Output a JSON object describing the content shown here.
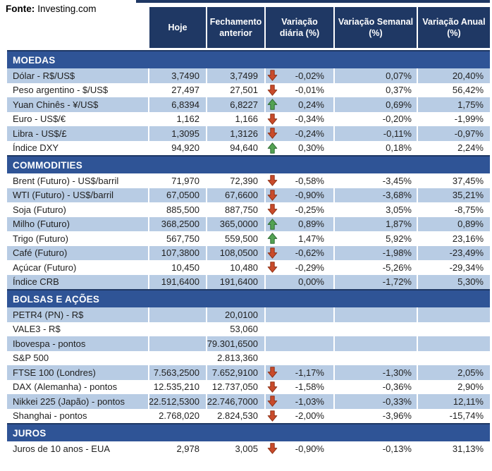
{
  "table": {
    "columns": [
      "Hoje",
      "Fechamento anterior",
      "Variação diária (%)",
      "Variação Semanal (%)",
      "Variação Anual (%)"
    ]
  },
  "colors": {
    "header_bg": "#1F3864",
    "section_bg": "#2F5496",
    "shaded_row_bg": "#B8CCE4",
    "arrow_down": "#C94B2B",
    "arrow_down_stroke": "#8F3014",
    "arrow_up": "#53A253",
    "arrow_up_stroke": "#2F6B33"
  },
  "sections": [
    {
      "title": "MOEDAS",
      "rows": [
        {
          "label": "Dólar - R$/US$",
          "hoje": "3,7490",
          "fech": "3,7499",
          "icon": "down",
          "vdia": "-0,02%",
          "vsem": "0,07%",
          "vanual": "20,40%",
          "shaded": true
        },
        {
          "label": "Peso argentino - $/US$",
          "hoje": "27,497",
          "fech": "27,501",
          "icon": "down",
          "vdia": "-0,01%",
          "vsem": "0,37%",
          "vanual": "56,42%",
          "shaded": false
        },
        {
          "label": "Yuan Chinês - ¥/US$",
          "hoje": "6,8394",
          "fech": "6,8227",
          "icon": "up",
          "vdia": "0,24%",
          "vsem": "0,69%",
          "vanual": "1,75%",
          "shaded": true
        },
        {
          "label": "Euro - US$/€",
          "hoje": "1,162",
          "fech": "1,166",
          "icon": "down",
          "vdia": "-0,34%",
          "vsem": "-0,20%",
          "vanual": "-1,99%",
          "shaded": false
        },
        {
          "label": "Libra - US$/£",
          "hoje": "1,3095",
          "fech": "1,3126",
          "icon": "down",
          "vdia": "-0,24%",
          "vsem": "-0,11%",
          "vanual": "-0,97%",
          "shaded": true
        },
        {
          "label": "Índice DXY",
          "hoje": "94,920",
          "fech": "94,640",
          "icon": "up",
          "vdia": "0,30%",
          "vsem": "0,18%",
          "vanual": "2,24%",
          "shaded": false
        }
      ]
    },
    {
      "title": "COMMODITIES",
      "rows": [
        {
          "label": "Brent (Futuro) - US$/barril",
          "hoje": "71,970",
          "fech": "72,390",
          "icon": "down",
          "vdia": "-0,58%",
          "vsem": "-3,45%",
          "vanual": "37,45%",
          "shaded": false
        },
        {
          "label": "WTI (Futuro) - US$/barril",
          "hoje": "67,0500",
          "fech": "67,6600",
          "icon": "down",
          "vdia": "-0,90%",
          "vsem": "-3,68%",
          "vanual": "35,21%",
          "shaded": true
        },
        {
          "label": "Soja (Futuro)",
          "hoje": "885,500",
          "fech": "887,750",
          "icon": "down",
          "vdia": "-0,25%",
          "vsem": "3,05%",
          "vanual": "-8,75%",
          "shaded": false
        },
        {
          "label": "Milho (Futuro)",
          "hoje": "368,2500",
          "fech": "365,0000",
          "icon": "up",
          "vdia": "0,89%",
          "vsem": "1,87%",
          "vanual": "0,89%",
          "shaded": true
        },
        {
          "label": "Trigo (Futuro)",
          "hoje": "567,750",
          "fech": "559,500",
          "icon": "up",
          "vdia": "1,47%",
          "vsem": "5,92%",
          "vanual": "23,16%",
          "shaded": false
        },
        {
          "label": "Café (Futuro)",
          "hoje": "107,3800",
          "fech": "108,0500",
          "icon": "down",
          "vdia": "-0,62%",
          "vsem": "-1,98%",
          "vanual": "-23,49%",
          "shaded": true
        },
        {
          "label": "Açúcar (Futuro)",
          "hoje": "10,450",
          "fech": "10,480",
          "icon": "down",
          "vdia": "-0,29%",
          "vsem": "-5,26%",
          "vanual": "-29,34%",
          "shaded": false
        },
        {
          "label": "Índice CRB",
          "hoje": "191,6400",
          "fech": "191,6400",
          "icon": "",
          "vdia": "0,00%",
          "vsem": "-1,72%",
          "vanual": "5,30%",
          "shaded": true
        }
      ]
    },
    {
      "title": "BOLSAS E AÇÕES",
      "rows": [
        {
          "label": "PETR4 (PN) - R$",
          "hoje": "",
          "fech": "20,0100",
          "icon": "",
          "vdia": "",
          "vsem": "",
          "vanual": "",
          "shaded": true
        },
        {
          "label": "VALE3 - R$",
          "hoje": "",
          "fech": "53,060",
          "icon": "",
          "vdia": "",
          "vsem": "",
          "vanual": "",
          "shaded": false
        },
        {
          "label": "Ibovespa - pontos",
          "hoje": "",
          "fech": "79.301,6500",
          "icon": "",
          "vdia": "",
          "vsem": "",
          "vanual": "",
          "shaded": true
        },
        {
          "label": "S&P 500",
          "hoje": "",
          "fech": "2.813,360",
          "icon": "",
          "vdia": "",
          "vsem": "",
          "vanual": "",
          "shaded": false
        },
        {
          "label": "FTSE 100 (Londres)",
          "hoje": "7.563,2500",
          "fech": "7.652,9100",
          "icon": "down",
          "vdia": "-1,17%",
          "vsem": "-1,30%",
          "vanual": "2,05%",
          "shaded": true
        },
        {
          "label": "DAX (Alemanha) - pontos",
          "hoje": "12.535,210",
          "fech": "12.737,050",
          "icon": "down",
          "vdia": "-1,58%",
          "vsem": "-0,36%",
          "vanual": "2,90%",
          "shaded": false
        },
        {
          "label": "Nikkei 225 (Japão) - pontos",
          "hoje": "22.512,5300",
          "fech": "22.746,7000",
          "icon": "down",
          "vdia": "-1,03%",
          "vsem": "-0,33%",
          "vanual": "12,11%",
          "shaded": true
        },
        {
          "label": "Shanghai - pontos",
          "hoje": "2.768,020",
          "fech": "2.824,530",
          "icon": "down",
          "vdia": "-2,00%",
          "vsem": "-3,96%",
          "vanual": "-15,74%",
          "shaded": false
        }
      ]
    },
    {
      "title": "JUROS",
      "rows": [
        {
          "label": "Juros de 10 anos - EUA",
          "hoje": "2,978",
          "fech": "3,005",
          "icon": "down",
          "vdia": "-0,90%",
          "vsem": "-0,13%",
          "vanual": "31,13%",
          "shaded": false
        }
      ]
    }
  ],
  "footer": {
    "source_label": "Fonte:",
    "source_value": "Investing.com"
  }
}
